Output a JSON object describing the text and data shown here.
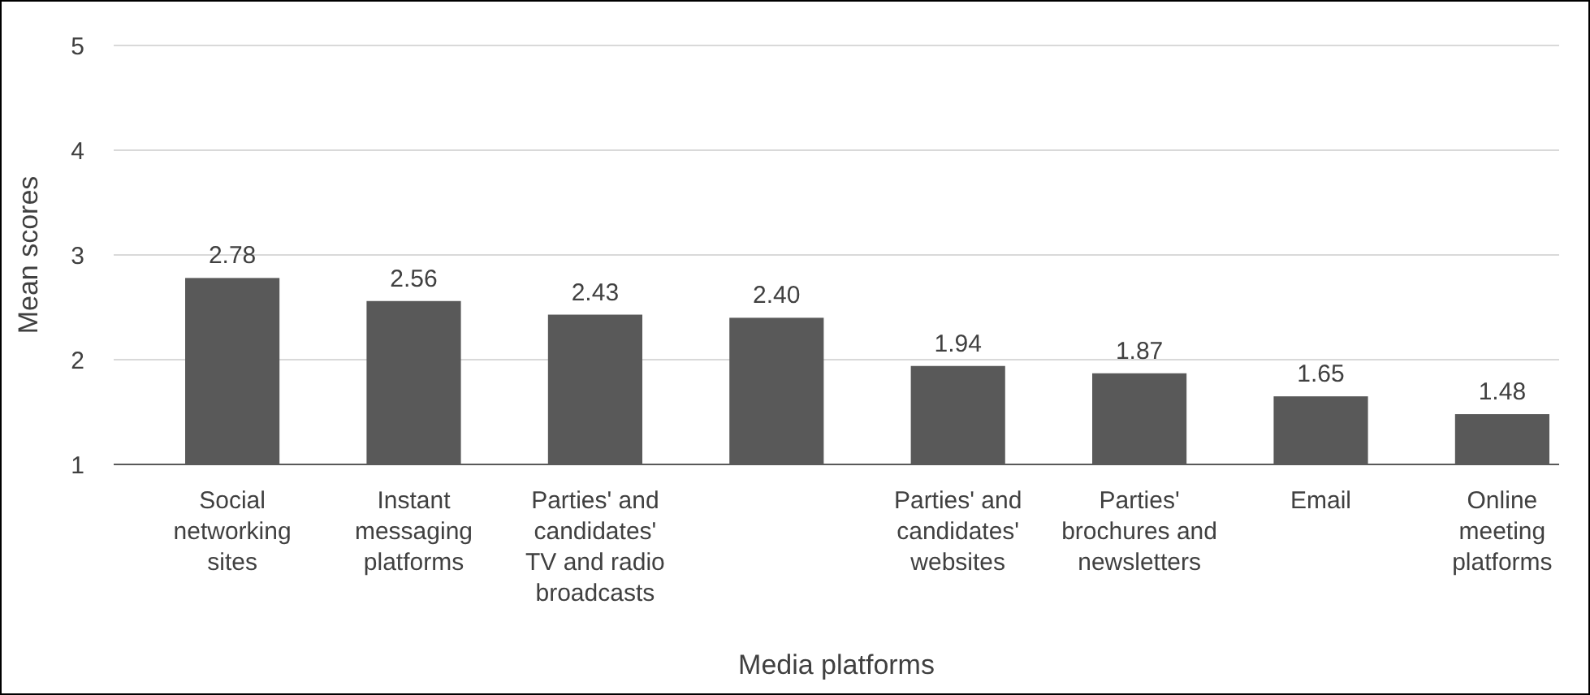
{
  "chart_data": {
    "type": "bar",
    "categories": [
      "Social networking sites",
      "Instant messaging platforms",
      "Parties' and candidates' TV and radio broadcasts",
      null,
      "Parties' and candidates' websites",
      "Parties' brochures and newsletters",
      "Email",
      "Online meeting platforms"
    ],
    "values": [
      2.78,
      2.56,
      2.43,
      2.4,
      1.94,
      1.87,
      1.65,
      1.48
    ],
    "value_labels": [
      "2.78",
      "2.56",
      "2.43",
      "2.40",
      "1.94",
      "1.87",
      "1.65",
      "1.48"
    ],
    "color": "#595959",
    "xlabel": "Media platforms",
    "ylabel": "Mean scores",
    "ylim": [
      1,
      5
    ],
    "yticks": [
      1,
      2,
      3,
      4,
      5
    ],
    "grid": "y"
  }
}
